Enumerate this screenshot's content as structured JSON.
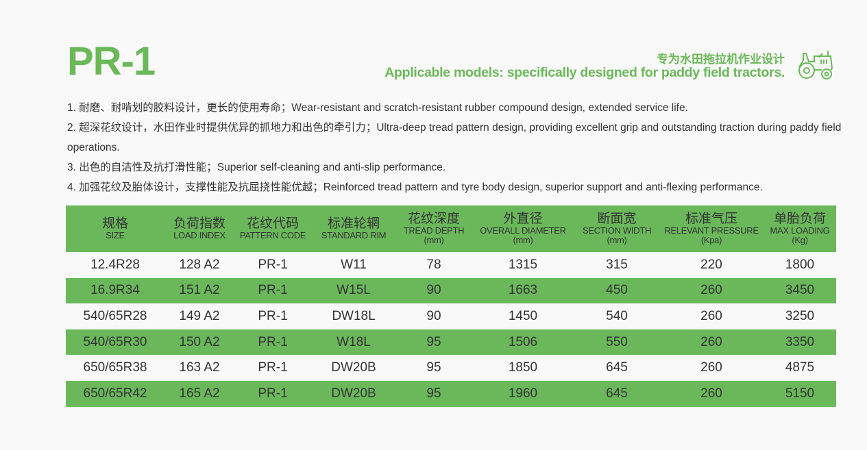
{
  "title": "PR-1",
  "subtitle_cn": "专为水田拖拉机作业设计",
  "subtitle_en": "Applicable models: specifically designed for paddy field tractors.",
  "icon": "tractor-icon",
  "accent_color": "#6ab858",
  "features": [
    "1.  耐磨、耐啃划的胶料设计，更长的使用寿命；Wear-resistant and scratch-resistant rubber compound design, extended service life.",
    "2.  超深花纹设计，水田作业时提供优异的抓地力和出色的牵引力；Ultra-deep tread pattern design, providing excellent grip and outstanding traction during paddy field operations.",
    "3.  出色的自洁性及抗打滑性能；Superior self-cleaning and anti-slip performance.",
    "4.  加强花纹及胎体设计，支撑性能及抗屈挠性能优越；Reinforced tread pattern and tyre body design, superior support and anti-flexing performance."
  ],
  "table": {
    "headers": [
      {
        "cn": "规格",
        "en": "SIZE",
        "unit": ""
      },
      {
        "cn": "负荷指数",
        "en": "LOAD INDEX",
        "unit": ""
      },
      {
        "cn": "花纹代码",
        "en": "PATTERN CODE",
        "unit": ""
      },
      {
        "cn": "标准轮辋",
        "en": "STANDARD RIM",
        "unit": ""
      },
      {
        "cn": "花纹深度",
        "en": "TREAD DEPTH",
        "unit": "(mm)"
      },
      {
        "cn": "外直径",
        "en": "OVERALL DIAMETER",
        "unit": "(mm)"
      },
      {
        "cn": "断面宽",
        "en": "SECTION WIDTH",
        "unit": "(mm)"
      },
      {
        "cn": "标准气压",
        "en": "RELEVANT PRESSURE",
        "unit": "(Kpa)"
      },
      {
        "cn": "单胎负荷",
        "en": "MAX LOADING",
        "unit": "(Kg)"
      }
    ],
    "rows": [
      [
        "12.4R28",
        "128 A2",
        "PR-1",
        "W11",
        "78",
        "1315",
        "315",
        "220",
        "1800"
      ],
      [
        "16.9R34",
        "151 A2",
        "PR-1",
        "W15L",
        "90",
        "1663",
        "450",
        "260",
        "3450"
      ],
      [
        "540/65R28",
        "149 A2",
        "PR-1",
        "DW18L",
        "90",
        "1450",
        "540",
        "260",
        "3250"
      ],
      [
        "540/65R30",
        "150 A2",
        "PR-1",
        "W18L",
        "95",
        "1506",
        "550",
        "260",
        "3350"
      ],
      [
        "650/65R38",
        "163 A2",
        "PR-1",
        "DW20B",
        "95",
        "1850",
        "645",
        "260",
        "4875"
      ],
      [
        "650/65R42",
        "165 A2",
        "PR-1",
        "DW20B",
        "95",
        "1960",
        "645",
        "260",
        "5150"
      ]
    ]
  }
}
